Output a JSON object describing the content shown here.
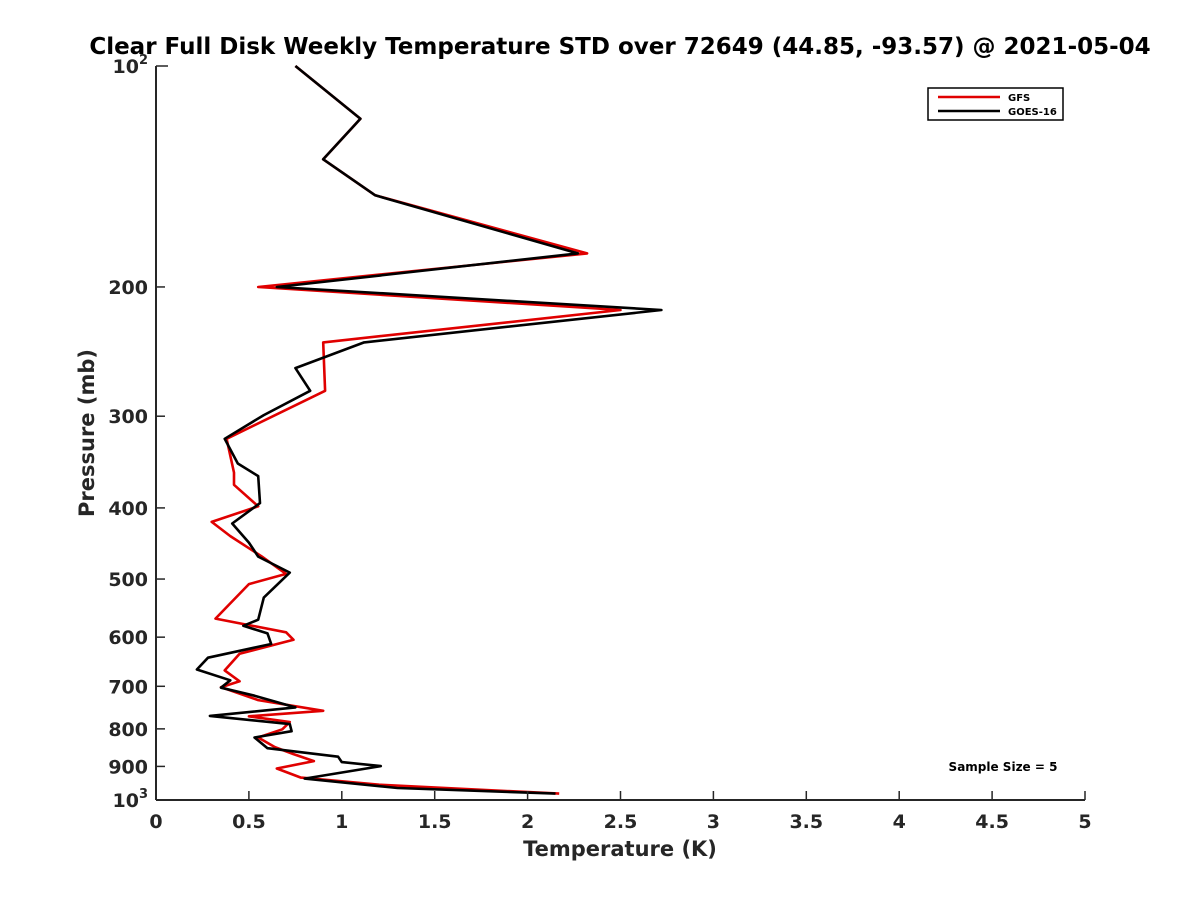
{
  "chart_data": {
    "type": "line",
    "title": "Clear Full Disk Weekly Temperature STD over 72649 (44.85, -93.57) @ 2021-05-04",
    "xlabel": "Temperature (K)",
    "ylabel": "Pressure (mb)",
    "xlim": [
      0,
      5
    ],
    "ylim": [
      100,
      1000
    ],
    "yscale": "log",
    "yreversed": true,
    "xticks": [
      0,
      0.5,
      1,
      1.5,
      2,
      2.5,
      3,
      3.5,
      4,
      4.5,
      5
    ],
    "xtick_labels": [
      "0",
      "0.5",
      "1",
      "1.5",
      "2",
      "2.5",
      "3",
      "3.5",
      "4",
      "4.5",
      "5"
    ],
    "yticks": [
      200,
      300,
      400,
      500,
      600,
      700,
      800,
      900
    ],
    "ytick_labels": [
      "200",
      "300",
      "400",
      "500",
      "600",
      "700",
      "800",
      "900"
    ],
    "yaxis_decades": [
      {
        "value": 100,
        "base": "10",
        "exp": "2"
      },
      {
        "value": 1000,
        "base": "10",
        "exp": "3"
      }
    ],
    "grid": false,
    "legend_position": "top-right",
    "annotation": "Sample Size = 5",
    "series": [
      {
        "name": "GFS",
        "color": "#e00000",
        "points": [
          [
            0.75,
            100
          ],
          [
            1.1,
            118
          ],
          [
            0.9,
            134
          ],
          [
            1.18,
            150
          ],
          [
            2.32,
            180
          ],
          [
            0.55,
            200
          ],
          [
            2.5,
            215
          ],
          [
            0.9,
            238
          ],
          [
            0.91,
            277
          ],
          [
            0.38,
            322
          ],
          [
            0.42,
            358
          ],
          [
            0.42,
            372
          ],
          [
            0.55,
            398
          ],
          [
            0.3,
            418
          ],
          [
            0.4,
            437
          ],
          [
            0.57,
            466
          ],
          [
            0.7,
            492
          ],
          [
            0.5,
            508
          ],
          [
            0.32,
            566
          ],
          [
            0.7,
            591
          ],
          [
            0.74,
            605
          ],
          [
            0.45,
            632
          ],
          [
            0.37,
            666
          ],
          [
            0.45,
            689
          ],
          [
            0.35,
            702
          ],
          [
            0.55,
            731
          ],
          [
            0.9,
            756
          ],
          [
            0.5,
            769
          ],
          [
            0.72,
            783
          ],
          [
            0.68,
            801
          ],
          [
            0.55,
            822
          ],
          [
            0.64,
            847
          ],
          [
            0.74,
            866
          ],
          [
            0.85,
            885
          ],
          [
            0.65,
            906
          ],
          [
            0.78,
            932
          ],
          [
            1.2,
            953
          ],
          [
            2.17,
            980
          ]
        ]
      },
      {
        "name": "GOES-16",
        "color": "#000000",
        "points": [
          [
            0.75,
            100
          ],
          [
            1.1,
            118
          ],
          [
            0.9,
            134
          ],
          [
            1.18,
            150
          ],
          [
            2.27,
            180
          ],
          [
            0.65,
            200
          ],
          [
            2.72,
            215
          ],
          [
            1.12,
            238
          ],
          [
            0.75,
            258
          ],
          [
            0.83,
            277
          ],
          [
            0.58,
            299
          ],
          [
            0.37,
            322
          ],
          [
            0.44,
            348
          ],
          [
            0.55,
            362
          ],
          [
            0.56,
            394
          ],
          [
            0.41,
            420
          ],
          [
            0.5,
            446
          ],
          [
            0.55,
            466
          ],
          [
            0.72,
            490
          ],
          [
            0.58,
            530
          ],
          [
            0.55,
            568
          ],
          [
            0.47,
            579
          ],
          [
            0.6,
            593
          ],
          [
            0.62,
            613
          ],
          [
            0.28,
            640
          ],
          [
            0.22,
            664
          ],
          [
            0.4,
            687
          ],
          [
            0.35,
            703
          ],
          [
            0.53,
            721
          ],
          [
            0.75,
            748
          ],
          [
            0.29,
            768
          ],
          [
            0.72,
            788
          ],
          [
            0.73,
            806
          ],
          [
            0.53,
            822
          ],
          [
            0.6,
            850
          ],
          [
            0.98,
            873
          ],
          [
            1.0,
            888
          ],
          [
            1.21,
            899
          ],
          [
            0.8,
            935
          ],
          [
            1.3,
            963
          ],
          [
            2.15,
            980
          ]
        ]
      }
    ]
  }
}
